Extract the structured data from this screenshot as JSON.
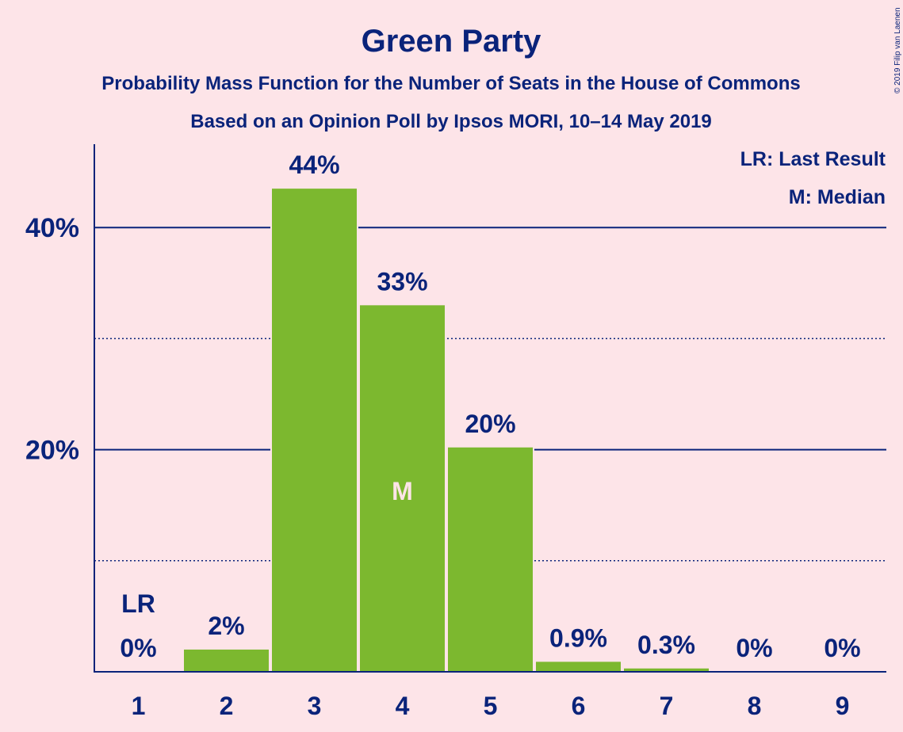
{
  "chart_data": {
    "type": "bar",
    "title": "Green Party",
    "subtitle": "Probability Mass Function for the Number of Seats in the House of Commons",
    "subtitle2": "Based on an Opinion Poll by Ipsos MORI, 10–14 May 2019",
    "copyright": "© 2019 Filip van Laenen",
    "legend": [
      "LR: Last Result",
      "M: Median"
    ],
    "legend_position": "top-right",
    "categories": [
      "1",
      "2",
      "3",
      "4",
      "5",
      "6",
      "7",
      "8",
      "9"
    ],
    "values": [
      0,
      2,
      43.5,
      33,
      20.2,
      0.9,
      0.3,
      0,
      0
    ],
    "value_labels": [
      "0%",
      "2%",
      "44%",
      "33%",
      "20%",
      "0.9%",
      "0.3%",
      "0%",
      "0%"
    ],
    "last_result_category": "1",
    "last_result_label": "LR",
    "median_category": "4",
    "median_label": "M",
    "ylim": [
      0,
      47
    ],
    "yticks": [
      20,
      40
    ],
    "ytick_labels": [
      "20%",
      "40%"
    ],
    "minor_gridlines": [
      10,
      30
    ],
    "colors": {
      "background": "#fde4e8",
      "bar": "#7cb82f",
      "text": "#0a237a"
    }
  }
}
